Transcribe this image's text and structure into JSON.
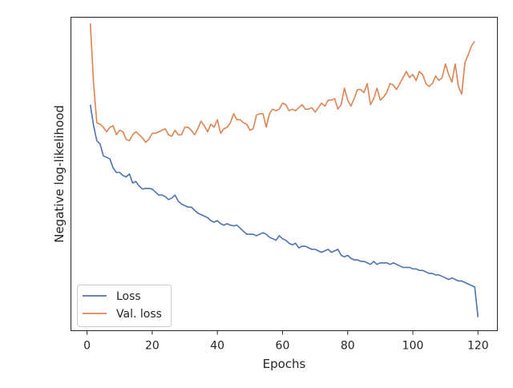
{
  "chart_data": {
    "type": "line",
    "xlabel": "Epochs",
    "ylabel": "Negative log-likelihood",
    "xlim": [
      -4.95,
      125.95
    ],
    "ylim": [
      -0.02,
      1.02
    ],
    "x_ticks": [
      0,
      20,
      40,
      60,
      80,
      100,
      120
    ],
    "y_ticks_shown": false,
    "grid": false,
    "legend_position": "lower-left",
    "y_scale_note": "",
    "series": [
      {
        "name": "Loss",
        "color": "#4c72b0",
        "x_start": 1,
        "values": [
          0.73,
          0.66,
          0.61,
          0.6,
          0.56,
          0.555,
          0.55,
          0.52,
          0.505,
          0.505,
          0.495,
          0.49,
          0.5,
          0.47,
          0.475,
          0.46,
          0.45,
          0.452,
          0.452,
          0.45,
          0.44,
          0.43,
          0.43,
          0.425,
          0.415,
          0.42,
          0.43,
          0.41,
          0.4,
          0.395,
          0.39,
          0.39,
          0.38,
          0.37,
          0.365,
          0.36,
          0.355,
          0.345,
          0.34,
          0.345,
          0.335,
          0.33,
          0.335,
          0.33,
          0.328,
          0.33,
          0.32,
          0.31,
          0.3,
          0.3,
          0.3,
          0.295,
          0.3,
          0.305,
          0.3,
          0.29,
          0.285,
          0.28,
          0.295,
          0.285,
          0.28,
          0.27,
          0.265,
          0.27,
          0.255,
          0.26,
          0.26,
          0.255,
          0.25,
          0.25,
          0.245,
          0.24,
          0.245,
          0.25,
          0.24,
          0.245,
          0.25,
          0.23,
          0.225,
          0.23,
          0.22,
          0.215,
          0.215,
          0.21,
          0.21,
          0.205,
          0.2,
          0.21,
          0.2,
          0.205,
          0.205,
          0.205,
          0.2,
          0.205,
          0.2,
          0.195,
          0.19,
          0.19,
          0.19,
          0.185,
          0.185,
          0.18,
          0.18,
          0.175,
          0.17,
          0.17,
          0.165,
          0.165,
          0.16,
          0.155,
          0.15,
          0.155,
          0.15,
          0.145,
          0.145,
          0.14,
          0.135,
          0.13,
          0.125,
          0.025
        ]
      },
      {
        "name": "Val. loss",
        "color": "#dd8452",
        "x_start": 1,
        "values": [
          1.0,
          0.8,
          0.67,
          0.665,
          0.655,
          0.64,
          0.655,
          0.66,
          0.63,
          0.645,
          0.64,
          0.615,
          0.61,
          0.63,
          0.64,
          0.63,
          0.62,
          0.605,
          0.615,
          0.635,
          0.635,
          0.64,
          0.645,
          0.65,
          0.63,
          0.625,
          0.645,
          0.63,
          0.63,
          0.655,
          0.655,
          0.645,
          0.63,
          0.65,
          0.675,
          0.66,
          0.64,
          0.665,
          0.655,
          0.68,
          0.635,
          0.65,
          0.655,
          0.67,
          0.7,
          0.68,
          0.68,
          0.67,
          0.665,
          0.645,
          0.65,
          0.695,
          0.7,
          0.7,
          0.655,
          0.7,
          0.715,
          0.71,
          0.715,
          0.735,
          0.73,
          0.71,
          0.715,
          0.71,
          0.72,
          0.73,
          0.715,
          0.715,
          0.72,
          0.705,
          0.72,
          0.735,
          0.725,
          0.745,
          0.745,
          0.75,
          0.715,
          0.73,
          0.785,
          0.745,
          0.725,
          0.75,
          0.78,
          0.78,
          0.77,
          0.8,
          0.73,
          0.75,
          0.785,
          0.745,
          0.755,
          0.77,
          0.8,
          0.795,
          0.78,
          0.8,
          0.82,
          0.84,
          0.82,
          0.83,
          0.81,
          0.84,
          0.83,
          0.8,
          0.79,
          0.8,
          0.825,
          0.81,
          0.82,
          0.865,
          0.83,
          0.805,
          0.865,
          0.79,
          0.765,
          0.87,
          0.895,
          0.925,
          0.94
        ]
      }
    ]
  }
}
